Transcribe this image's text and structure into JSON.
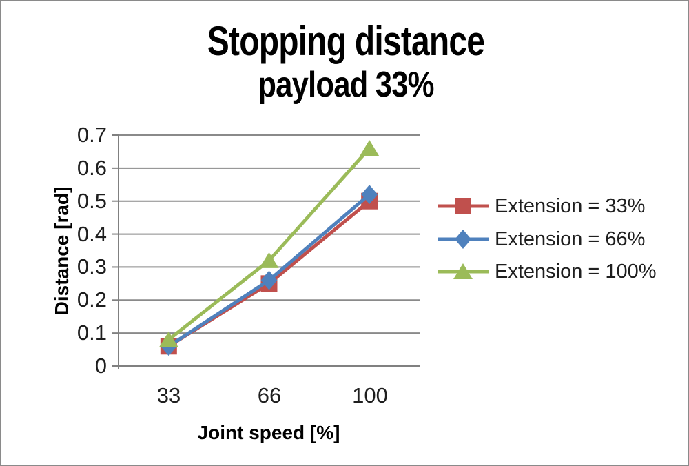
{
  "chart_data": {
    "type": "line",
    "title": "Stopping distance",
    "subtitle": "payload 33%",
    "xlabel": "Joint speed [%]",
    "ylabel": "Distance [rad]",
    "categories": [
      "33",
      "66",
      "100"
    ],
    "y_tick_labels": [
      "0.7",
      "0.6",
      "0.5",
      "0.4",
      "0.3",
      "0.2",
      "0.1",
      "0"
    ],
    "ylim": [
      0,
      0.7
    ],
    "y_step": 0.1,
    "grid": "horizontal",
    "legend_position": "right",
    "series": [
      {
        "name": "Extension = 33%",
        "marker": "square",
        "color": "#c0504d",
        "values": [
          0.06,
          0.25,
          0.5
        ]
      },
      {
        "name": "Extension = 66%",
        "marker": "diamond",
        "color": "#4f81bd",
        "values": [
          0.06,
          0.26,
          0.52
        ]
      },
      {
        "name": "Extension = 100%",
        "marker": "triangle",
        "color": "#9bbb59",
        "values": [
          0.08,
          0.32,
          0.66
        ]
      }
    ],
    "colors": {
      "grid": "#8a8a8a",
      "axis": "#808080",
      "text": "#1f1f1f",
      "title": "#000000",
      "background": "#ffffff",
      "frame_border": "#8a8a8a"
    }
  }
}
